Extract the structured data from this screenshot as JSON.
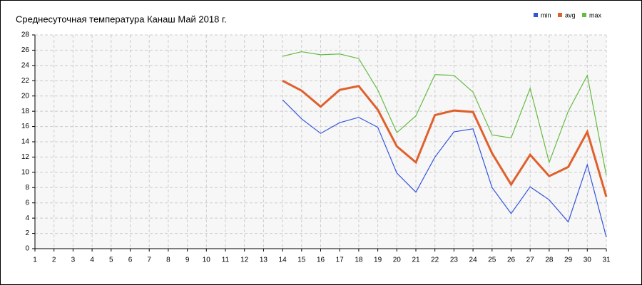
{
  "chart_data": {
    "type": "line",
    "title": "Среднесуточная температура Канаш  Май 2018 г.",
    "x": [
      1,
      2,
      3,
      4,
      5,
      6,
      7,
      8,
      9,
      10,
      11,
      12,
      13,
      14,
      15,
      16,
      17,
      18,
      19,
      20,
      21,
      22,
      23,
      24,
      25,
      26,
      27,
      28,
      29,
      30,
      31
    ],
    "series": [
      {
        "name": "min",
        "color": "#3355dd",
        "values": [
          null,
          null,
          null,
          null,
          null,
          null,
          null,
          null,
          null,
          null,
          null,
          null,
          null,
          19.5,
          17.0,
          15.1,
          16.5,
          17.2,
          15.9,
          9.9,
          7.4,
          12.0,
          15.3,
          15.7,
          8.0,
          4.6,
          8.1,
          6.4,
          3.5,
          11.0,
          1.5
        ]
      },
      {
        "name": "avg",
        "color": "#e0602c",
        "values": [
          null,
          null,
          null,
          null,
          null,
          null,
          null,
          null,
          null,
          null,
          null,
          null,
          null,
          22.0,
          20.7,
          18.6,
          20.8,
          21.3,
          18.2,
          13.4,
          11.3,
          17.5,
          18.1,
          17.9,
          12.5,
          8.4,
          12.3,
          9.5,
          10.7,
          15.3,
          6.8
        ]
      },
      {
        "name": "max",
        "color": "#66bb44",
        "values": [
          null,
          null,
          null,
          null,
          null,
          null,
          null,
          null,
          null,
          null,
          null,
          null,
          null,
          25.2,
          25.8,
          25.4,
          25.5,
          24.9,
          20.8,
          15.2,
          17.4,
          22.8,
          22.7,
          20.5,
          14.9,
          14.5,
          21.0,
          11.3,
          18.0,
          22.7,
          9.6
        ]
      }
    ],
    "xlim": [
      1,
      31
    ],
    "xticks": [
      1,
      2,
      3,
      4,
      5,
      6,
      7,
      8,
      9,
      10,
      11,
      12,
      13,
      14,
      15,
      16,
      17,
      18,
      19,
      20,
      21,
      22,
      23,
      24,
      25,
      26,
      27,
      28,
      29,
      30,
      31
    ],
    "ylim": [
      0,
      28
    ],
    "yticks": [
      0,
      2,
      4,
      6,
      8,
      10,
      12,
      14,
      16,
      18,
      20,
      22,
      24,
      26,
      28
    ],
    "grid": true,
    "legend": "top-right"
  }
}
